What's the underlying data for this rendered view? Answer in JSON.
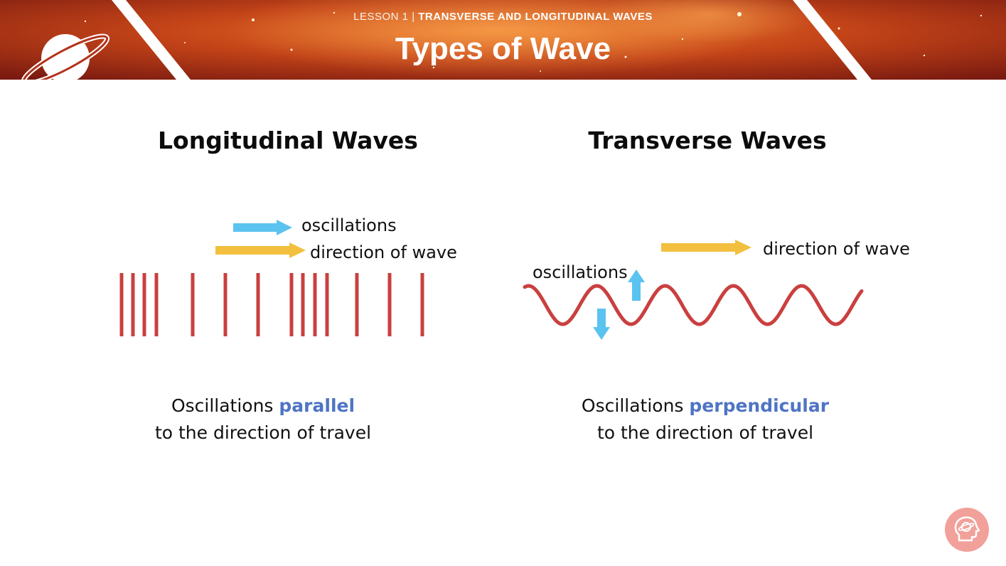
{
  "header": {
    "lesson_number": "LESSON 1 |",
    "lesson_topic": "TRANSVERSE AND LONGITUDINAL WAVES",
    "title": "Types of Wave",
    "logo_icon": "ringed-planet-icon"
  },
  "longitudinal": {
    "title": "Longitudinal Waves",
    "oscillations_label": "oscillations",
    "direction_label": "direction of wave",
    "caption_line1_prefix": "Oscillations ",
    "caption_highlight": "parallel",
    "caption_line2": "to the direction of travel"
  },
  "transverse": {
    "title": "Transverse Waves",
    "oscillations_label": "oscillations",
    "direction_label": "direction of wave",
    "caption_line1_prefix": "Oscillations ",
    "caption_highlight": "perpendicular",
    "caption_line2": "to the direction of travel"
  },
  "colors": {
    "wave_red": "#c9403f",
    "oscillation_blue": "#5bc3f0",
    "direction_yellow": "#f2c03e",
    "highlight_blue": "#4f74c4",
    "logo_pink": "#f1a19a"
  },
  "footer": {
    "brand_icon": "head-planet-icon"
  }
}
